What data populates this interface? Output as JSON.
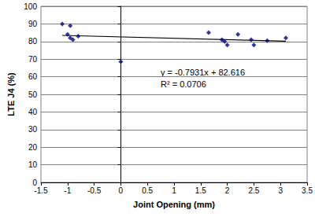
{
  "chart_data": {
    "type": "scatter",
    "xlabel": "Joint Opening (mm)",
    "ylabel": "LTE J4 (%)",
    "x": [
      -1.1,
      -1.0,
      -0.95,
      -0.95,
      -0.9,
      -0.8,
      0.0,
      1.65,
      1.9,
      1.95,
      2.0,
      2.2,
      2.45,
      2.5,
      2.75,
      3.1
    ],
    "values": [
      90,
      84,
      89,
      82,
      81,
      83,
      68.5,
      85,
      81,
      80,
      78,
      84,
      81,
      78,
      80.5,
      82
    ],
    "color": "#000080",
    "marker": "diamond",
    "trendline": {
      "x": [
        -1.1,
        3.1
      ],
      "values": [
        83.49,
        80.16
      ],
      "color": "#000000"
    },
    "annotations": [
      "y = -0.7931x + 82.616",
      "R² = 0.0706"
    ],
    "xlim": [
      -1.5,
      3.5
    ],
    "xticks": [
      -1.5,
      -1,
      -0.5,
      0,
      0.5,
      1,
      1.5,
      2,
      2.5,
      3,
      3.5
    ],
    "ylim": [
      0,
      100
    ],
    "yticks": [
      0,
      10,
      20,
      30,
      40,
      50,
      60,
      70,
      80,
      90,
      100
    ],
    "grid": true
  }
}
